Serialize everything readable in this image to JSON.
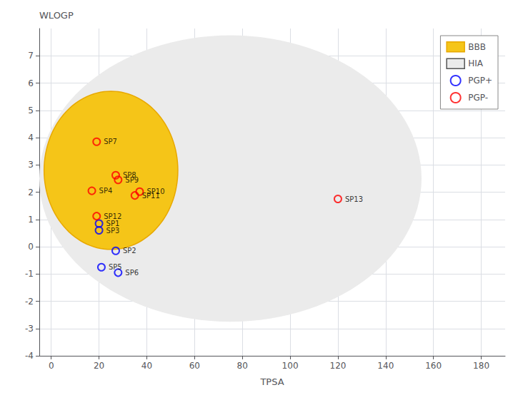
{
  "chart_data": {
    "type": "scatter",
    "xlabel": "TPSA",
    "ylabel": "WLOGP",
    "xlim": [
      -5,
      190
    ],
    "ylim": [
      -4,
      8
    ],
    "xticks": [
      0,
      20,
      40,
      60,
      80,
      100,
      120,
      140,
      160,
      180
    ],
    "yticks": [
      -4,
      -3,
      -2,
      -1,
      0,
      1,
      2,
      3,
      4,
      5,
      6,
      7
    ],
    "grid": true,
    "legend": "upper right",
    "ellipses": [
      {
        "name": "HIA",
        "center_x": 75,
        "center_y": 2.5,
        "width": 160,
        "height": 10.5,
        "color": "#ebebeb"
      },
      {
        "name": "BBB",
        "center_x": 25,
        "center_y": 2.8,
        "width": 56,
        "height": 5.8,
        "color": "#f5c518",
        "edge_color": "#e8a800"
      }
    ],
    "series": [
      {
        "name": "PGP+",
        "color": "blue",
        "marker": "open_circle",
        "x": [
          20,
          27,
          20,
          21,
          28
        ],
        "y": [
          0.85,
          -0.15,
          0.6,
          -0.75,
          -0.95
        ],
        "labels": [
          "SP1",
          "SP2",
          "SP3",
          "SP5",
          "SP6"
        ]
      },
      {
        "name": "PGP-",
        "color": "red",
        "marker": "open_circle",
        "x": [
          17,
          19,
          27,
          28,
          37,
          35,
          19,
          120
        ],
        "y": [
          2.05,
          3.85,
          2.62,
          2.45,
          2.02,
          1.88,
          1.12,
          1.75
        ],
        "labels": [
          "SP4",
          "SP7",
          "SP8",
          "SP9",
          "SP10",
          "SP11",
          "SP12",
          "SP13"
        ]
      }
    ]
  }
}
